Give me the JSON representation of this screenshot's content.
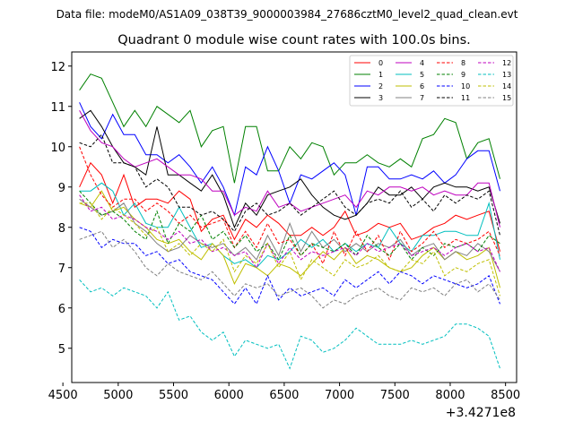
{
  "file_header": "Data file: modeM0/AS1A09_038T39_9000003984_27686cztM0_level2_quad_clean.evt",
  "chart_data": {
    "type": "line",
    "title": "Quadrant 0 module wise count rates with 100.0s bins.",
    "xlabel": "",
    "ylabel": "",
    "x_offset_label": "+3.4271e8",
    "xlim": [
      4580,
      8600
    ],
    "ylim": [
      4.15,
      12.35
    ],
    "xticks": [
      4500,
      5000,
      5500,
      6000,
      6500,
      7000,
      7500,
      8000,
      8500
    ],
    "yticks": [
      5,
      6,
      7,
      8,
      9,
      10,
      11,
      12
    ],
    "x": [
      4650,
      4750,
      4850,
      4950,
      5050,
      5150,
      5250,
      5350,
      5450,
      5550,
      5650,
      5750,
      5850,
      5950,
      6050,
      6150,
      6250,
      6350,
      6450,
      6550,
      6650,
      6750,
      6850,
      6950,
      7050,
      7150,
      7250,
      7350,
      7450,
      7550,
      7650,
      7750,
      7850,
      7950,
      8050,
      8150,
      8250,
      8350,
      8450
    ],
    "series": [
      {
        "name": "0",
        "color": "#ff0000",
        "dash": false,
        "values": [
          9.0,
          9.6,
          9.3,
          8.6,
          9.3,
          8.5,
          8.7,
          8.7,
          8.6,
          8.9,
          8.7,
          7.9,
          8.2,
          8.3,
          7.7,
          8.2,
          8.0,
          8.3,
          8.1,
          7.8,
          7.8,
          8.0,
          7.8,
          8.0,
          8.4,
          7.8,
          7.9,
          8.1,
          8.0,
          8.1,
          7.7,
          7.8,
          8.0,
          8.1,
          8.3,
          8.2,
          8.3,
          8.4,
          7.4
        ]
      },
      {
        "name": "1",
        "color": "#008000",
        "dash": false,
        "values": [
          11.4,
          11.8,
          11.7,
          11.1,
          10.5,
          10.9,
          10.5,
          11.0,
          10.8,
          10.6,
          10.9,
          10.0,
          10.4,
          10.5,
          9.1,
          10.5,
          10.5,
          9.4,
          9.4,
          10.0,
          9.7,
          10.1,
          10.0,
          9.3,
          9.6,
          9.6,
          9.8,
          9.6,
          9.5,
          9.7,
          9.5,
          10.2,
          10.3,
          10.7,
          10.6,
          9.7,
          10.1,
          10.2,
          9.2
        ]
      },
      {
        "name": "2",
        "color": "#0000ff",
        "dash": false,
        "values": [
          11.1,
          10.5,
          10.2,
          10.8,
          10.3,
          10.3,
          9.8,
          9.8,
          9.6,
          9.8,
          9.5,
          9.1,
          9.5,
          9.0,
          8.3,
          9.5,
          9.3,
          10.0,
          9.4,
          8.6,
          9.3,
          9.2,
          9.4,
          9.6,
          9.3,
          8.3,
          9.5,
          9.5,
          9.2,
          9.2,
          9.3,
          9.2,
          9.4,
          9.1,
          9.3,
          9.7,
          9.9,
          9.9,
          8.9
        ]
      },
      {
        "name": "3",
        "color": "#000000",
        "dash": false,
        "values": [
          10.7,
          10.9,
          10.5,
          10.0,
          9.6,
          9.5,
          9.3,
          10.5,
          9.3,
          9.3,
          9.1,
          8.9,
          9.3,
          8.8,
          8.0,
          8.6,
          8.3,
          8.8,
          8.9,
          9.0,
          9.2,
          8.8,
          8.5,
          8.3,
          8.2,
          8.3,
          8.6,
          9.0,
          8.8,
          8.8,
          9.0,
          8.7,
          9.0,
          9.1,
          9.0,
          9.0,
          8.9,
          9.0,
          8.1
        ]
      },
      {
        "name": "4",
        "color": "#bf00bf",
        "dash": false,
        "values": [
          10.9,
          10.4,
          10.1,
          10.0,
          9.7,
          9.5,
          9.6,
          9.7,
          9.5,
          9.3,
          9.3,
          9.2,
          8.9,
          8.9,
          8.3,
          8.5,
          8.4,
          8.9,
          8.5,
          8.6,
          8.4,
          8.5,
          8.6,
          8.7,
          8.8,
          8.5,
          8.9,
          8.8,
          9.0,
          9.0,
          8.9,
          9.0,
          8.8,
          8.9,
          8.8,
          8.8,
          9.1,
          9.1,
          8.0
        ]
      },
      {
        "name": "5",
        "color": "#00bfbf",
        "dash": false,
        "values": [
          8.9,
          8.9,
          9.1,
          8.9,
          8.3,
          8.6,
          8.1,
          8.0,
          8.0,
          8.5,
          8.0,
          7.5,
          7.6,
          7.3,
          7.1,
          7.2,
          7.0,
          7.3,
          7.2,
          7.4,
          7.7,
          7.5,
          7.7,
          7.4,
          7.6,
          7.4,
          7.6,
          7.5,
          8.0,
          7.6,
          7.4,
          7.8,
          7.8,
          7.9,
          7.9,
          7.8,
          7.8,
          8.6,
          7.2
        ]
      },
      {
        "name": "6",
        "color": "#bfbf00",
        "dash": false,
        "values": [
          8.6,
          8.5,
          8.9,
          8.4,
          8.5,
          8.2,
          8.0,
          7.7,
          7.6,
          7.7,
          7.4,
          7.2,
          7.6,
          7.3,
          6.6,
          7.1,
          7.0,
          6.8,
          7.1,
          7.0,
          6.8,
          7.1,
          7.4,
          7.2,
          7.5,
          7.1,
          7.3,
          7.2,
          7.0,
          6.9,
          7.0,
          7.3,
          7.5,
          7.2,
          7.4,
          7.2,
          7.3,
          7.5,
          6.5
        ]
      },
      {
        "name": "7",
        "color": "#808080",
        "dash": false,
        "values": [
          8.7,
          8.5,
          8.3,
          8.4,
          8.6,
          8.1,
          7.9,
          7.6,
          7.4,
          7.5,
          7.8,
          7.6,
          7.5,
          7.6,
          7.3,
          7.5,
          7.2,
          7.8,
          7.3,
          8.1,
          7.4,
          7.9,
          7.5,
          7.7,
          7.4,
          7.6,
          7.4,
          7.6,
          7.5,
          7.7,
          7.3,
          7.5,
          7.6,
          7.2,
          7.4,
          7.3,
          7.6,
          7.4,
          6.9
        ]
      },
      {
        "name": "8",
        "color": "#ff0000",
        "dash": true,
        "values": [
          10.0,
          9.3,
          8.8,
          8.5,
          8.7,
          8.7,
          8.4,
          8.6,
          8.4,
          8.1,
          8.3,
          8.0,
          8.1,
          8.2,
          7.5,
          7.9,
          7.5,
          8.1,
          7.6,
          7.7,
          7.3,
          7.6,
          7.1,
          7.9,
          7.3,
          7.9,
          7.4,
          7.8,
          7.2,
          7.9,
          7.4,
          7.6,
          7.9,
          7.5,
          7.7,
          7.6,
          7.7,
          7.9,
          7.3
        ]
      },
      {
        "name": "9",
        "color": "#008000",
        "dash": true,
        "values": [
          8.9,
          8.6,
          8.3,
          8.4,
          8.2,
          7.9,
          7.7,
          8.4,
          7.6,
          8.1,
          7.9,
          8.3,
          7.7,
          7.9,
          7.5,
          7.8,
          7.4,
          7.6,
          7.2,
          7.8,
          7.3,
          7.6,
          7.5,
          7.4,
          7.6,
          7.3,
          7.8,
          7.5,
          7.3,
          7.6,
          7.2,
          7.5,
          7.3,
          7.6,
          7.5,
          7.6,
          7.4,
          7.8,
          7.6
        ]
      },
      {
        "name": "10",
        "color": "#0000ff",
        "dash": true,
        "values": [
          8.0,
          7.9,
          7.5,
          7.7,
          7.6,
          7.6,
          7.3,
          7.4,
          7.1,
          7.2,
          6.9,
          6.8,
          6.7,
          6.4,
          6.1,
          6.5,
          6.1,
          6.8,
          6.2,
          6.5,
          6.3,
          6.4,
          6.5,
          6.3,
          6.7,
          6.5,
          6.7,
          6.9,
          6.6,
          6.9,
          6.8,
          6.6,
          6.8,
          6.7,
          6.6,
          6.5,
          6.6,
          6.8,
          6.1
        ]
      },
      {
        "name": "11",
        "color": "#000000",
        "dash": true,
        "values": [
          10.1,
          10.0,
          10.3,
          9.6,
          9.6,
          9.5,
          9.0,
          9.2,
          9.0,
          8.5,
          8.5,
          8.3,
          8.4,
          8.2,
          7.9,
          8.4,
          8.6,
          8.3,
          8.4,
          8.6,
          8.3,
          8.5,
          8.7,
          8.9,
          8.5,
          8.3,
          8.6,
          8.7,
          8.6,
          8.9,
          8.5,
          8.7,
          8.4,
          8.8,
          8.6,
          8.8,
          8.7,
          8.9,
          7.8
        ]
      },
      {
        "name": "12",
        "color": "#bf00bf",
        "dash": true,
        "values": [
          8.8,
          8.4,
          8.5,
          8.2,
          8.3,
          8.2,
          8.0,
          7.9,
          7.7,
          7.9,
          7.6,
          7.7,
          7.4,
          7.5,
          7.3,
          7.4,
          7.0,
          7.6,
          7.1,
          7.5,
          7.2,
          7.4,
          7.3,
          7.4,
          7.5,
          7.3,
          7.6,
          7.4,
          7.5,
          7.6,
          7.3,
          7.4,
          7.5,
          7.3,
          7.5,
          7.6,
          7.4,
          7.5,
          6.9
        ]
      },
      {
        "name": "13",
        "color": "#00bfbf",
        "dash": true,
        "values": [
          6.7,
          6.4,
          6.5,
          6.3,
          6.5,
          6.4,
          6.3,
          6.0,
          6.4,
          5.7,
          5.8,
          5.4,
          5.2,
          5.4,
          4.8,
          5.2,
          5.1,
          5.0,
          5.1,
          4.5,
          5.3,
          5.2,
          4.9,
          5.0,
          5.2,
          5.5,
          5.3,
          5.1,
          5.1,
          5.1,
          5.2,
          5.1,
          5.2,
          5.3,
          5.6,
          5.6,
          5.5,
          5.3,
          4.5
        ]
      },
      {
        "name": "14",
        "color": "#bfbf00",
        "dash": true,
        "values": [
          8.6,
          8.6,
          8.2,
          8.5,
          8.3,
          8.1,
          7.8,
          8.0,
          7.4,
          7.6,
          7.3,
          7.6,
          7.4,
          7.7,
          6.9,
          7.3,
          7.1,
          7.6,
          7.0,
          7.4,
          6.7,
          7.2,
          7.0,
          6.8,
          7.2,
          7.0,
          7.1,
          7.3,
          7.0,
          6.9,
          7.2,
          7.1,
          7.4,
          6.8,
          7.0,
          6.9,
          7.1,
          7.2,
          6.3
        ]
      },
      {
        "name": "15",
        "color": "#808080",
        "dash": true,
        "values": [
          7.7,
          7.8,
          7.9,
          7.5,
          7.7,
          7.4,
          7.0,
          6.8,
          7.1,
          6.9,
          6.8,
          6.7,
          6.9,
          6.6,
          6.3,
          6.6,
          6.5,
          6.6,
          6.3,
          6.4,
          6.5,
          6.3,
          6.0,
          6.2,
          6.1,
          6.3,
          6.4,
          6.5,
          6.3,
          6.2,
          6.5,
          6.4,
          6.5,
          6.3,
          6.6,
          6.7,
          6.4,
          6.6,
          6.2
        ]
      }
    ]
  }
}
